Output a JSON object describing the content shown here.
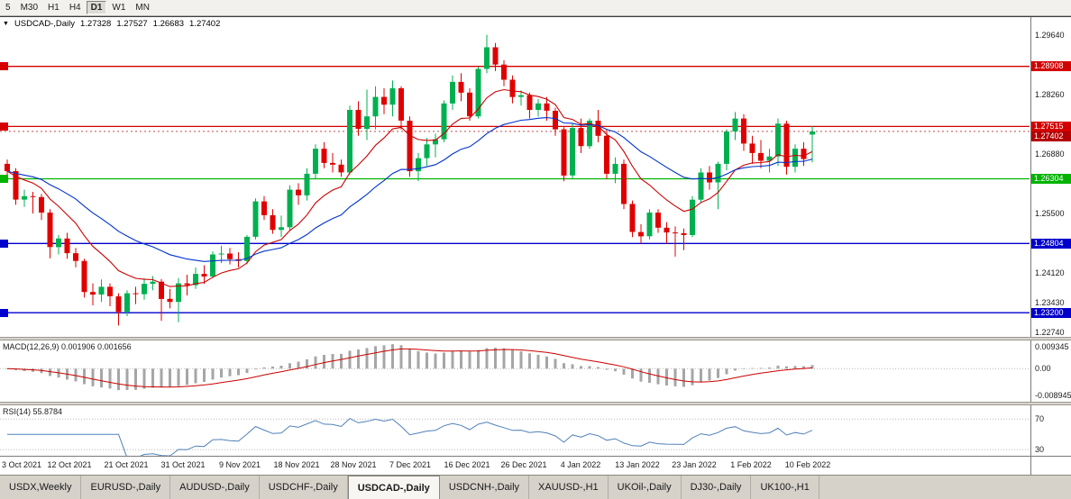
{
  "toolbar": {
    "periods": [
      {
        "label": "5",
        "active": false
      },
      {
        "label": "M30",
        "active": false
      },
      {
        "label": "H1",
        "active": false
      },
      {
        "label": "H4",
        "active": false
      },
      {
        "label": "D1",
        "active": true
      },
      {
        "label": "W1",
        "active": false
      },
      {
        "label": "MN",
        "active": false
      }
    ]
  },
  "chart_header": {
    "dropdown_icon": "▼",
    "symbol": "USDCAD-,Daily",
    "open": "1.27328",
    "high": "1.27527",
    "low": "1.26683",
    "close": "1.27402"
  },
  "chart_data": {
    "type": "candlestick",
    "symbol": "USDCAD",
    "timeframe": "Daily",
    "up_color": "#00b050",
    "down_color": "#e00000",
    "ma_fast_color": "#cc0000",
    "ma_fast_period": 10,
    "ma_slow_color": "#0033cc",
    "ma_slow_period": 25,
    "price_scale": {
      "max": 1.3005,
      "min": 1.2264
    },
    "y_axis_labels": [
      "1.29640",
      "1.28260",
      "1.26880",
      "1.25500",
      "1.24120",
      "1.23430",
      "1.22740"
    ],
    "x_labels": [
      "3 Oct 2021",
      "12 Oct 2021",
      "21 Oct 2021",
      "31 Oct 2021",
      "9 Nov 2021",
      "18 Nov 2021",
      "28 Nov 2021",
      "7 Dec 2021",
      "16 Dec 2021",
      "26 Dec 2021",
      "4 Jan 2022",
      "13 Jan 2022",
      "23 Jan 2022",
      "1 Feb 2022",
      "10 Feb 2022"
    ],
    "h_lines": [
      {
        "price": 1.28908,
        "label": "1.28908",
        "color": "#d40000"
      },
      {
        "price": 1.27515,
        "label": "1.27515",
        "color": "#d40000"
      },
      {
        "price": 1.26304,
        "label": "1.26304",
        "color": "#00b400"
      },
      {
        "price": 1.24804,
        "label": "1.24804",
        "color": "#0000cc"
      },
      {
        "price": 1.232,
        "label": "1.23200",
        "color": "#0000cc"
      }
    ],
    "current_price": {
      "value": 1.27402,
      "label": "1.27402",
      "color": "#b40000"
    },
    "candles": [
      [
        1.2665,
        1.2675,
        1.2622,
        1.2648
      ],
      [
        1.2648,
        1.2655,
        1.257,
        1.2582
      ],
      [
        1.2582,
        1.2605,
        1.2565,
        1.259
      ],
      [
        1.259,
        1.26,
        1.255,
        1.2588
      ],
      [
        1.2588,
        1.2595,
        1.2535,
        1.2552
      ],
      [
        1.2552,
        1.256,
        1.2446,
        1.2472
      ],
      [
        1.2472,
        1.25,
        1.2455,
        1.2492
      ],
      [
        1.2492,
        1.2505,
        1.2445,
        1.2458
      ],
      [
        1.2458,
        1.247,
        1.2425,
        1.244
      ],
      [
        1.244,
        1.2445,
        1.2355,
        1.2368
      ],
      [
        1.2368,
        1.2388,
        1.2337,
        1.2362
      ],
      [
        1.2362,
        1.2397,
        1.2345,
        1.238
      ],
      [
        1.238,
        1.2388,
        1.2335,
        1.2358
      ],
      [
        1.2358,
        1.2365,
        1.229,
        1.2322
      ],
      [
        1.2322,
        1.2372,
        1.2312,
        1.2365
      ],
      [
        1.2365,
        1.238,
        1.234,
        1.2363
      ],
      [
        1.2363,
        1.24,
        1.235,
        1.2387
      ],
      [
        1.2387,
        1.2405,
        1.2372,
        1.2392
      ],
      [
        1.2392,
        1.2398,
        1.2301,
        1.2352
      ],
      [
        1.2352,
        1.2375,
        1.233,
        1.2345
      ],
      [
        1.2345,
        1.24,
        1.2298,
        1.2388
      ],
      [
        1.2388,
        1.2408,
        1.236,
        1.2384
      ],
      [
        1.2384,
        1.2425,
        1.2375,
        1.241
      ],
      [
        1.241,
        1.243,
        1.2387,
        1.2404
      ],
      [
        1.2404,
        1.2462,
        1.24,
        1.2455
      ],
      [
        1.2455,
        1.2475,
        1.2435,
        1.2457
      ],
      [
        1.2457,
        1.247,
        1.2432,
        1.2444
      ],
      [
        1.2444,
        1.246,
        1.2425,
        1.244
      ],
      [
        1.244,
        1.25,
        1.2432,
        1.2496
      ],
      [
        1.2496,
        1.2585,
        1.249,
        1.2578
      ],
      [
        1.2578,
        1.259,
        1.2535,
        1.2546
      ],
      [
        1.2546,
        1.256,
        1.2503,
        1.2512
      ],
      [
        1.2512,
        1.2545,
        1.2495,
        1.2518
      ],
      [
        1.2518,
        1.2615,
        1.251,
        1.2605
      ],
      [
        1.2605,
        1.262,
        1.257,
        1.2592
      ],
      [
        1.2592,
        1.2655,
        1.258,
        1.2642
      ],
      [
        1.2642,
        1.271,
        1.263,
        1.27
      ],
      [
        1.27,
        1.2715,
        1.2655,
        1.2667
      ],
      [
        1.2667,
        1.269,
        1.2645,
        1.2663
      ],
      [
        1.2663,
        1.2675,
        1.2635,
        1.2645
      ],
      [
        1.2645,
        1.28,
        1.264,
        1.279
      ],
      [
        1.279,
        1.281,
        1.273,
        1.2746
      ],
      [
        1.2746,
        1.2837,
        1.272,
        1.2775
      ],
      [
        1.2775,
        1.2845,
        1.2745,
        1.282
      ],
      [
        1.282,
        1.284,
        1.278,
        1.2802
      ],
      [
        1.2802,
        1.2858,
        1.2775,
        1.284
      ],
      [
        1.284,
        1.2845,
        1.2745,
        1.2765
      ],
      [
        1.2765,
        1.2775,
        1.2635,
        1.2648
      ],
      [
        1.2648,
        1.269,
        1.2625,
        1.2678
      ],
      [
        1.2678,
        1.2725,
        1.266,
        1.271
      ],
      [
        1.271,
        1.2735,
        1.268,
        1.2722
      ],
      [
        1.2722,
        1.2812,
        1.2715,
        1.2805
      ],
      [
        1.2805,
        1.287,
        1.279,
        1.2855
      ],
      [
        1.2855,
        1.2875,
        1.281,
        1.283
      ],
      [
        1.283,
        1.284,
        1.2765,
        1.2775
      ],
      [
        1.2775,
        1.289,
        1.277,
        1.2885
      ],
      [
        1.2885,
        1.2964,
        1.2875,
        1.2935
      ],
      [
        1.2935,
        1.2945,
        1.288,
        1.2895
      ],
      [
        1.2895,
        1.2905,
        1.2845,
        1.286
      ],
      [
        1.286,
        1.287,
        1.2805,
        1.282
      ],
      [
        1.282,
        1.2835,
        1.28,
        1.2824
      ],
      [
        1.2824,
        1.283,
        1.277,
        1.279
      ],
      [
        1.279,
        1.2815,
        1.2775,
        1.2805
      ],
      [
        1.2805,
        1.282,
        1.2765,
        1.2788
      ],
      [
        1.2788,
        1.2795,
        1.273,
        1.2745
      ],
      [
        1.2745,
        1.275,
        1.2625,
        1.2638
      ],
      [
        1.2638,
        1.276,
        1.263,
        1.2748
      ],
      [
        1.2748,
        1.277,
        1.269,
        1.2706
      ],
      [
        1.2706,
        1.277,
        1.27,
        1.2765
      ],
      [
        1.2765,
        1.279,
        1.2715,
        1.273
      ],
      [
        1.273,
        1.2745,
        1.263,
        1.2642
      ],
      [
        1.2642,
        1.268,
        1.262,
        1.2665
      ],
      [
        1.2665,
        1.2675,
        1.256,
        1.2572
      ],
      [
        1.2572,
        1.258,
        1.2495,
        1.2507
      ],
      [
        1.2507,
        1.2525,
        1.248,
        1.2497
      ],
      [
        1.2497,
        1.256,
        1.249,
        1.2552
      ],
      [
        1.2552,
        1.256,
        1.2505,
        1.2517
      ],
      [
        1.2517,
        1.253,
        1.248,
        1.2506
      ],
      [
        1.2506,
        1.252,
        1.245,
        1.2504
      ],
      [
        1.2504,
        1.2515,
        1.2465,
        1.25
      ],
      [
        1.25,
        1.259,
        1.2495,
        1.2582
      ],
      [
        1.2582,
        1.2655,
        1.2575,
        1.2645
      ],
      [
        1.2645,
        1.266,
        1.2605,
        1.2622
      ],
      [
        1.2622,
        1.267,
        1.256,
        1.2665
      ],
      [
        1.2665,
        1.2745,
        1.265,
        1.274
      ],
      [
        1.274,
        1.2785,
        1.272,
        1.277
      ],
      [
        1.277,
        1.278,
        1.2695,
        1.2712
      ],
      [
        1.2712,
        1.273,
        1.2665,
        1.269
      ],
      [
        1.269,
        1.272,
        1.2655,
        1.2672
      ],
      [
        1.2672,
        1.27,
        1.2645,
        1.2682
      ],
      [
        1.2682,
        1.277,
        1.266,
        1.2758
      ],
      [
        1.2758,
        1.2765,
        1.264,
        1.2658
      ],
      [
        1.2658,
        1.271,
        1.2645,
        1.27
      ],
      [
        1.27,
        1.2715,
        1.266,
        1.2676
      ],
      [
        1.27328,
        1.27527,
        1.26683,
        1.27402
      ]
    ]
  },
  "indicators": {
    "macd": {
      "label": "MACD(12,26,9) 0.001906 0.001656",
      "params": "12,26,9",
      "macd_value": "0.001906",
      "signal_value": "0.001656",
      "axis_labels": [
        "0.009345",
        "0.00",
        "-0.008945"
      ],
      "histogram_color": "#a6a6a6",
      "signal_color": "#cc0000"
    },
    "rsi": {
      "label": "RSI(14) 55.8784",
      "period": "14",
      "value": "55.8784",
      "levels": [
        70,
        30
      ],
      "axis_labels": [
        "70",
        "30"
      ],
      "line_color": "#4f81b9"
    }
  },
  "tabs": {
    "items": [
      {
        "label": "USDX,Weekly",
        "active": false
      },
      {
        "label": "EURUSD-,Daily",
        "active": false
      },
      {
        "label": "AUDUSD-,Daily",
        "active": false
      },
      {
        "label": "USDCHF-,Daily",
        "active": false
      },
      {
        "label": "USDCAD-,Daily",
        "active": true
      },
      {
        "label": "USDCNH-,Daily",
        "active": false
      },
      {
        "label": "XAUUSD-,H1",
        "active": false
      },
      {
        "label": "UKOil-,Daily",
        "active": false
      },
      {
        "label": "DJ30-,Daily",
        "active": false
      },
      {
        "label": "UK100-,H1",
        "active": false
      }
    ]
  }
}
